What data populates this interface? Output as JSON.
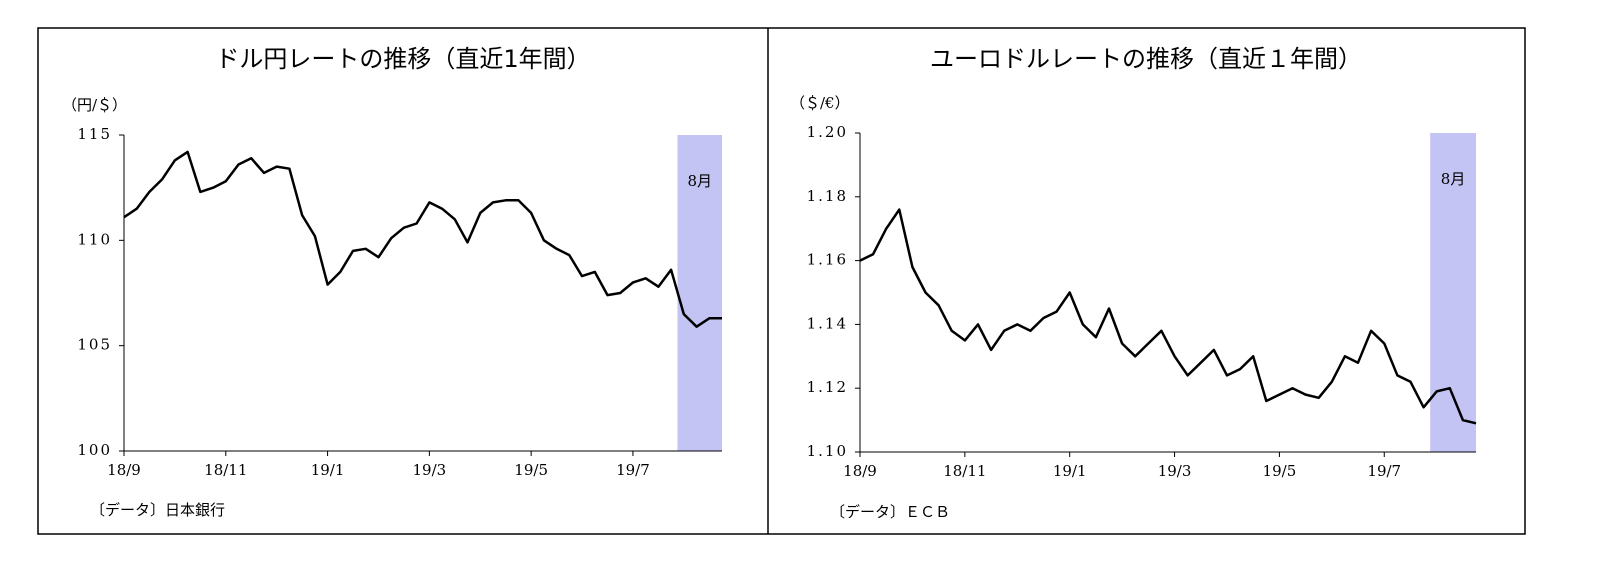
{
  "chart_data": [
    {
      "type": "line",
      "title": "ドル円レートの推移（直近1年間）",
      "y_label": "（円/＄）",
      "source": "〔データ〕日本銀行",
      "categories": [
        "18/9",
        null,
        null,
        null,
        null,
        null,
        null,
        null,
        "18/11",
        null,
        null,
        null,
        null,
        null,
        null,
        null,
        "19/1",
        null,
        null,
        null,
        null,
        null,
        null,
        null,
        "19/3",
        null,
        null,
        null,
        null,
        null,
        null,
        null,
        "19/5",
        null,
        null,
        null,
        null,
        null,
        null,
        null,
        "19/7",
        null,
        null,
        null,
        null,
        null,
        null,
        null
      ],
      "series": [
        {
          "color": "#000000",
          "values": [
            111.1,
            111.5,
            112.3,
            112.9,
            113.8,
            114.2,
            112.3,
            112.5,
            112.8,
            113.6,
            113.9,
            113.2,
            113.5,
            113.4,
            111.2,
            110.2,
            107.9,
            108.5,
            109.5,
            109.6,
            109.2,
            110.1,
            110.6,
            110.8,
            111.8,
            111.5,
            111.0,
            109.9,
            111.3,
            111.8,
            111.9,
            111.9,
            111.3,
            110.0,
            109.6,
            109.3,
            108.3,
            108.5,
            107.4,
            107.5,
            108.0,
            108.2,
            107.8,
            108.6,
            106.5,
            105.9,
            106.3,
            106.3
          ]
        }
      ],
      "ylim": [
        100,
        115
      ],
      "yticks": [
        100,
        105,
        110,
        115
      ],
      "highlight": {
        "label": "8月",
        "from_index": 44,
        "color": "#c4c4f4"
      }
    },
    {
      "type": "line",
      "title": "ユーロドルレートの推移（直近１年間）",
      "y_label": "（＄/€）",
      "source": "〔データ〕ＥＣＢ",
      "categories": [
        "18/9",
        null,
        null,
        null,
        null,
        null,
        null,
        null,
        "18/11",
        null,
        null,
        null,
        null,
        null,
        null,
        null,
        "19/1",
        null,
        null,
        null,
        null,
        null,
        null,
        null,
        "19/3",
        null,
        null,
        null,
        null,
        null,
        null,
        null,
        "19/5",
        null,
        null,
        null,
        null,
        null,
        null,
        null,
        "19/7",
        null,
        null,
        null,
        null,
        null,
        null,
        null
      ],
      "series": [
        {
          "color": "#000000",
          "values": [
            1.16,
            1.162,
            1.17,
            1.176,
            1.158,
            1.15,
            1.146,
            1.138,
            1.135,
            1.14,
            1.132,
            1.138,
            1.14,
            1.138,
            1.142,
            1.144,
            1.15,
            1.14,
            1.136,
            1.145,
            1.134,
            1.13,
            1.134,
            1.138,
            1.13,
            1.124,
            1.128,
            1.132,
            1.124,
            1.126,
            1.13,
            1.116,
            1.118,
            1.12,
            1.118,
            1.117,
            1.122,
            1.13,
            1.128,
            1.138,
            1.134,
            1.124,
            1.122,
            1.114,
            1.119,
            1.12,
            1.11,
            1.109
          ]
        }
      ],
      "ylim": [
        1.1,
        1.2
      ],
      "yticks": [
        {
          "value": 1.1,
          "label": "1.10"
        },
        1.12,
        1.14,
        1.16,
        1.18,
        {
          "value": 1.2,
          "label": "1.20"
        }
      ],
      "highlight": {
        "label": "8月",
        "from_index": 44,
        "color": "#c4c4f4"
      }
    }
  ]
}
